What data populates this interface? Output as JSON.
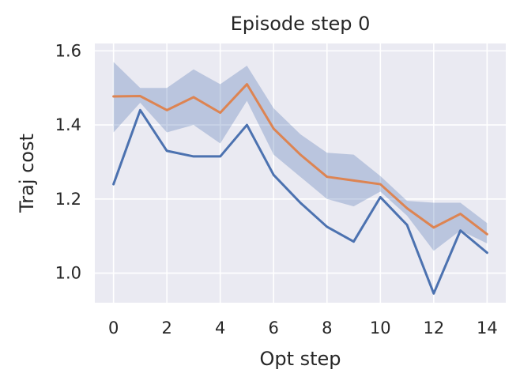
{
  "chart_data": {
    "type": "line",
    "title": "Episode step 0",
    "xlabel": "Opt step",
    "ylabel": "Traj cost",
    "xlim": [
      -0.7,
      14.7
    ],
    "ylim": [
      0.92,
      1.62
    ],
    "xticks": [
      0,
      2,
      4,
      6,
      8,
      10,
      12,
      14
    ],
    "xtick_labels": [
      "0",
      "2",
      "4",
      "6",
      "8",
      "10",
      "12",
      "14"
    ],
    "yticks": [
      1.0,
      1.2,
      1.4,
      1.6
    ],
    "ytick_labels": [
      "1.0",
      "1.2",
      "1.4",
      "1.6"
    ],
    "grid": true,
    "background_color": "#eaeaf2",
    "x": [
      0,
      1,
      2,
      3,
      4,
      5,
      6,
      7,
      8,
      9,
      10,
      11,
      12,
      13,
      14
    ],
    "series": [
      {
        "color": "#4c72b0",
        "values": [
          1.24,
          1.44,
          1.33,
          1.315,
          1.315,
          1.4,
          1.265,
          1.19,
          1.125,
          1.085,
          1.205,
          1.13,
          0.945,
          1.115,
          1.055
        ]
      },
      {
        "color": "#dd8452",
        "values": [
          1.477,
          1.478,
          1.44,
          1.475,
          1.433,
          1.51,
          1.39,
          1.32,
          1.26,
          1.25,
          1.24,
          1.175,
          1.123,
          1.16,
          1.105
        ]
      }
    ],
    "band": {
      "color": "#4c72b0",
      "opacity": 0.3,
      "upper": [
        1.57,
        1.5,
        1.5,
        1.55,
        1.51,
        1.56,
        1.445,
        1.375,
        1.325,
        1.32,
        1.262,
        1.195,
        1.19,
        1.19,
        1.135
      ],
      "lower": [
        1.38,
        1.46,
        1.38,
        1.4,
        1.35,
        1.465,
        1.32,
        1.26,
        1.2,
        1.18,
        1.22,
        1.155,
        1.06,
        1.115,
        1.08
      ]
    }
  }
}
